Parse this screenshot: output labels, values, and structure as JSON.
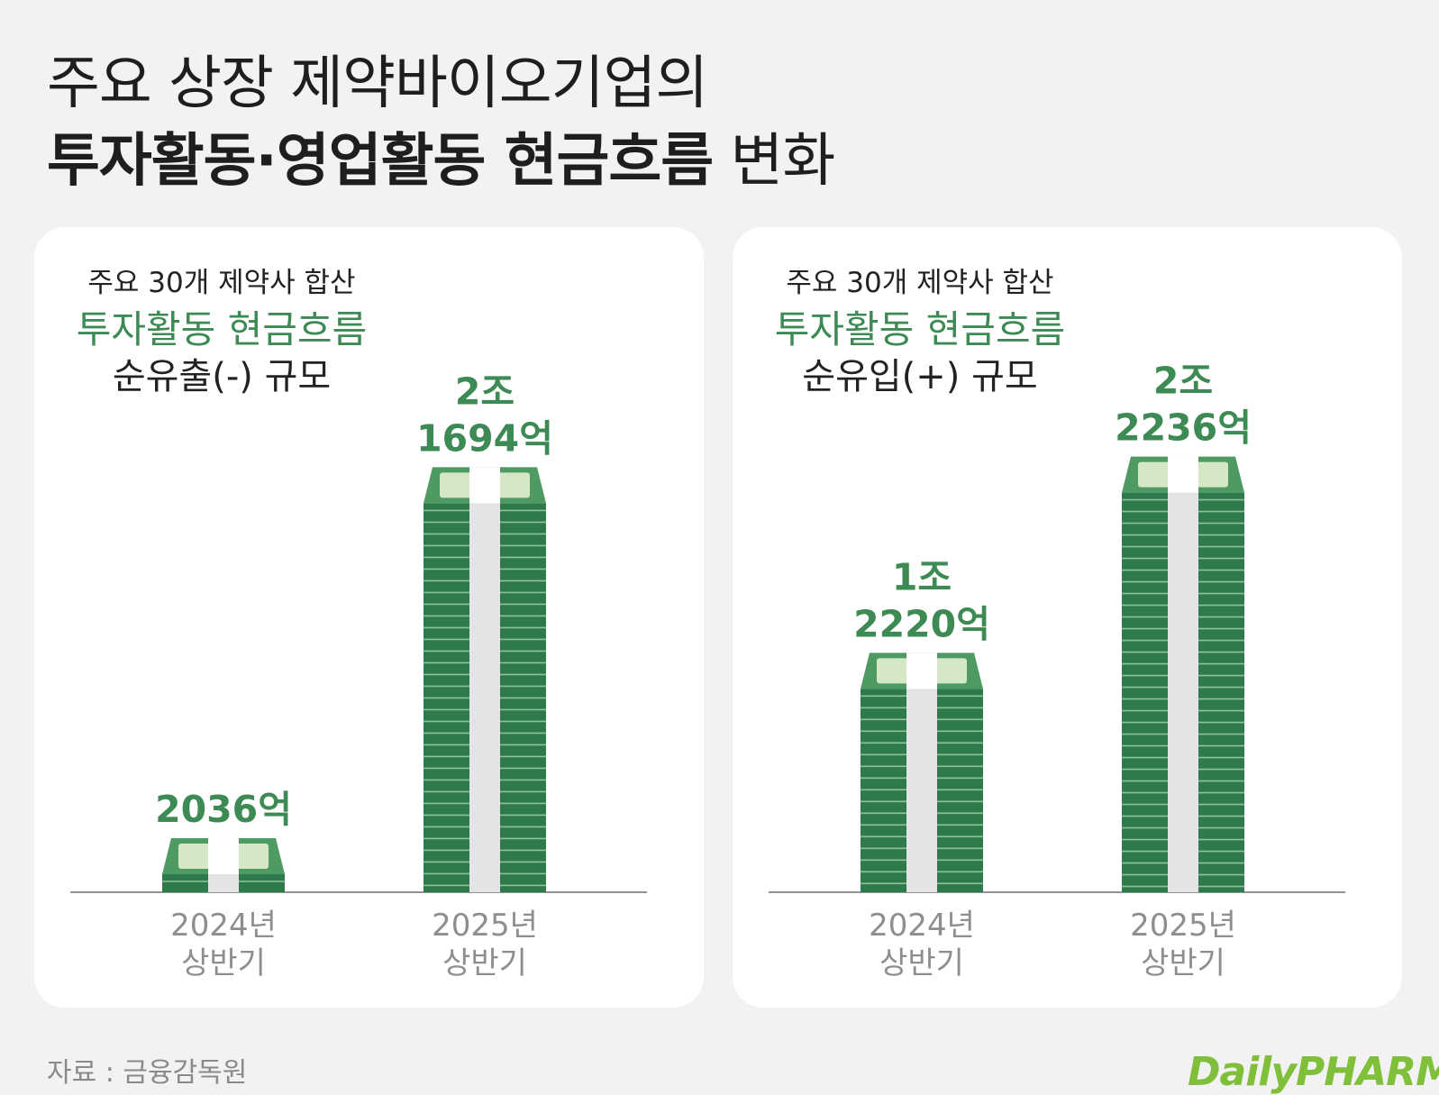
{
  "title": {
    "line1": "주요 상장 제약바이오기업의",
    "line2_bold": "투자활동·영업활동 현금흐름",
    "line2_regular": "변화"
  },
  "footer": {
    "source": "자료 : 금융감독원"
  },
  "logo": {
    "text": "DailyPHARM"
  },
  "colors": {
    "accent_green": "#3d8a55",
    "bill_dark": "#2f7a4c",
    "bill_light": "#d4e8c8",
    "band": "#e4e4e6",
    "background": "#f2f2f2",
    "panel": "#ffffff"
  },
  "chart_data": [
    {
      "type": "bar",
      "header": {
        "line1": "주요 30개 제약사 합산",
        "line2": "투자활동 현금흐름",
        "line3": "순유출(-) 규모"
      },
      "categories": [
        [
          "2024년",
          "상반기"
        ],
        [
          "2025년",
          "상반기"
        ]
      ],
      "values": [
        2036,
        21694
      ],
      "unit": "억",
      "value_labels": [
        [
          "2036억"
        ],
        [
          "2조",
          "1694억"
        ]
      ],
      "ylim": [
        0,
        23000
      ],
      "grid": false
    },
    {
      "type": "bar",
      "header": {
        "line1": "주요 30개 제약사 합산",
        "line2": "투자활동 현금흐름",
        "line3": "순유입(+) 규모"
      },
      "categories": [
        [
          "2024년",
          "상반기"
        ],
        [
          "2025년",
          "상반기"
        ]
      ],
      "values": [
        12220,
        22236
      ],
      "unit": "억",
      "value_labels": [
        [
          "1조",
          "2220억"
        ],
        [
          "2조",
          "2236억"
        ]
      ],
      "ylim": [
        0,
        23000
      ],
      "grid": false
    }
  ]
}
